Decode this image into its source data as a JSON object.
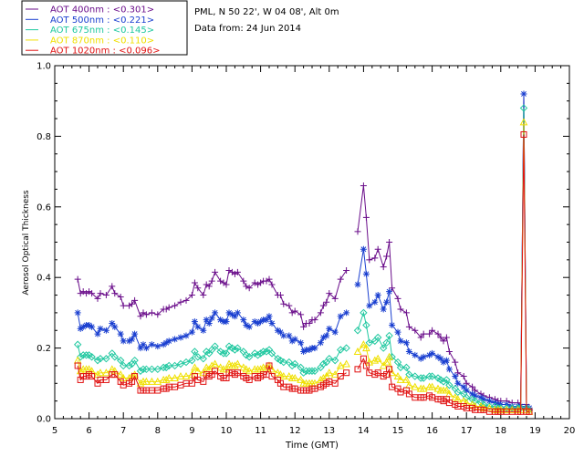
{
  "chart_data": {
    "type": "line",
    "xlabel": "Time (GMT)",
    "ylabel": "Aerosol Optical Thickness",
    "xlim": [
      5,
      20
    ],
    "ylim": [
      0,
      1.0
    ],
    "x_ticks": [
      "5",
      "6",
      "7",
      "8",
      "9",
      "10",
      "11",
      "12",
      "13",
      "14",
      "15",
      "16",
      "17",
      "18",
      "19",
      "20"
    ],
    "y_ticks": [
      "0.0",
      "0.2",
      "0.4",
      "0.6",
      "0.8",
      "1.0"
    ],
    "info_lines": [
      "PML, N 50 22', W 04 08', Alt 0m",
      "Data from: 24 Jun 2014"
    ],
    "legend": [
      {
        "label": "AOT  400nm : <0.301>",
        "color": "#6a0d8a",
        "marker": "plus"
      },
      {
        "label": "AOT  500nm : <0.221>",
        "color": "#1a3fd0",
        "marker": "star"
      },
      {
        "label": "AOT  675nm : <0.145>",
        "color": "#20c8a0",
        "marker": "diamond"
      },
      {
        "label": "AOT  870nm : <0.110>",
        "color": "#f0e000",
        "marker": "triangle"
      },
      {
        "label": "AOT 1020nm : <0.096>",
        "color": "#e01010",
        "marker": "square"
      }
    ],
    "x": [
      5.67,
      5.75,
      5.83,
      5.92,
      6.0,
      6.08,
      6.25,
      6.33,
      6.5,
      6.67,
      6.75,
      6.92,
      7.0,
      7.17,
      7.25,
      7.33,
      7.5,
      7.58,
      7.67,
      7.83,
      8.0,
      8.17,
      8.25,
      8.33,
      8.5,
      8.67,
      8.83,
      9.0,
      9.08,
      9.17,
      9.33,
      9.42,
      9.5,
      9.58,
      9.67,
      9.83,
      9.92,
      10.0,
      10.08,
      10.17,
      10.25,
      10.33,
      10.5,
      10.58,
      10.67,
      10.83,
      10.92,
      11.0,
      11.08,
      11.17,
      11.25,
      11.33,
      11.5,
      11.58,
      11.67,
      11.83,
      11.92,
      12.0,
      12.17,
      12.25,
      12.33,
      12.42,
      12.5,
      12.58,
      12.75,
      12.83,
      12.92,
      13.0,
      13.17,
      13.33,
      13.5,
      13.58,
      13.83,
      14.0,
      14.08,
      14.17,
      14.33,
      14.42,
      14.58,
      14.67,
      14.75,
      14.83,
      15.0,
      15.08,
      15.25,
      15.33,
      15.5,
      15.67,
      15.75,
      15.92,
      16.0,
      16.17,
      16.25,
      16.33,
      16.42,
      16.5,
      16.67,
      16.75,
      16.92,
      17.0,
      17.17,
      17.25,
      17.42,
      17.5,
      17.67,
      17.83,
      17.92,
      18.0,
      18.17,
      18.33,
      18.5,
      18.58,
      18.67,
      18.75,
      18.83
    ],
    "series": [
      {
        "name": "AOT 400nm",
        "values": [
          0.395,
          0.355,
          0.36,
          0.355,
          0.36,
          0.355,
          0.34,
          0.355,
          0.35,
          0.375,
          0.355,
          0.345,
          0.32,
          0.32,
          0.325,
          0.335,
          0.29,
          0.3,
          0.295,
          0.3,
          0.295,
          0.31,
          0.31,
          0.315,
          0.32,
          0.33,
          0.335,
          0.35,
          0.385,
          0.37,
          0.35,
          0.38,
          0.375,
          0.39,
          0.415,
          0.39,
          0.385,
          0.38,
          0.42,
          0.415,
          0.41,
          0.415,
          0.39,
          0.375,
          0.37,
          0.385,
          0.38,
          0.385,
          0.39,
          0.39,
          0.395,
          0.38,
          0.35,
          0.35,
          0.325,
          0.32,
          0.3,
          0.305,
          0.295,
          0.26,
          0.27,
          0.27,
          0.28,
          0.28,
          0.3,
          0.32,
          0.33,
          0.355,
          0.34,
          0.395,
          0.42,
          null,
          0.53,
          0.66,
          0.57,
          0.45,
          0.455,
          0.48,
          0.43,
          0.46,
          0.5,
          0.37,
          0.34,
          0.31,
          0.3,
          0.26,
          0.25,
          0.23,
          0.24,
          0.24,
          0.25,
          0.24,
          0.23,
          0.22,
          0.23,
          0.19,
          0.16,
          0.13,
          0.12,
          0.1,
          0.09,
          0.08,
          0.07,
          0.065,
          0.06,
          0.055,
          0.05,
          0.05,
          0.05,
          0.045,
          0.045,
          0.04,
          0.92,
          0.04,
          0.03
        ]
      },
      {
        "name": "AOT 500nm",
        "values": [
          0.3,
          0.255,
          0.26,
          0.265,
          0.265,
          0.26,
          0.24,
          0.255,
          0.25,
          0.27,
          0.26,
          0.24,
          0.22,
          0.22,
          0.225,
          0.24,
          0.2,
          0.21,
          0.2,
          0.21,
          0.205,
          0.21,
          0.215,
          0.22,
          0.225,
          0.23,
          0.235,
          0.245,
          0.275,
          0.26,
          0.25,
          0.28,
          0.27,
          0.285,
          0.3,
          0.28,
          0.275,
          0.275,
          0.3,
          0.295,
          0.29,
          0.3,
          0.28,
          0.265,
          0.26,
          0.275,
          0.27,
          0.275,
          0.28,
          0.28,
          0.29,
          0.27,
          0.25,
          0.245,
          0.235,
          0.235,
          0.22,
          0.225,
          0.215,
          0.19,
          0.195,
          0.195,
          0.2,
          0.2,
          0.215,
          0.23,
          0.235,
          0.255,
          0.245,
          0.29,
          0.3,
          null,
          0.38,
          0.48,
          0.41,
          0.32,
          0.33,
          0.35,
          0.31,
          0.33,
          0.36,
          0.265,
          0.245,
          0.22,
          0.215,
          0.19,
          0.18,
          0.17,
          0.175,
          0.18,
          0.185,
          0.175,
          0.17,
          0.16,
          0.165,
          0.14,
          0.12,
          0.1,
          0.09,
          0.08,
          0.07,
          0.065,
          0.06,
          0.055,
          0.05,
          0.045,
          0.04,
          0.04,
          0.04,
          0.035,
          0.035,
          0.035,
          0.92,
          0.035,
          0.03
        ]
      },
      {
        "name": "AOT 675nm",
        "values": [
          0.21,
          0.175,
          0.18,
          0.18,
          0.18,
          0.175,
          0.165,
          0.17,
          0.17,
          0.185,
          0.175,
          0.165,
          0.15,
          0.15,
          0.155,
          0.165,
          0.135,
          0.14,
          0.14,
          0.14,
          0.14,
          0.145,
          0.145,
          0.15,
          0.15,
          0.155,
          0.16,
          0.165,
          0.19,
          0.175,
          0.17,
          0.19,
          0.185,
          0.195,
          0.205,
          0.19,
          0.185,
          0.185,
          0.205,
          0.2,
          0.195,
          0.2,
          0.19,
          0.18,
          0.175,
          0.185,
          0.18,
          0.185,
          0.19,
          0.19,
          0.195,
          0.185,
          0.17,
          0.165,
          0.16,
          0.16,
          0.15,
          0.155,
          0.145,
          0.13,
          0.135,
          0.135,
          0.135,
          0.135,
          0.145,
          0.155,
          0.16,
          0.17,
          0.165,
          0.195,
          0.2,
          null,
          0.25,
          0.3,
          0.265,
          0.215,
          0.22,
          0.23,
          0.2,
          0.215,
          0.235,
          0.175,
          0.16,
          0.145,
          0.145,
          0.125,
          0.12,
          0.115,
          0.115,
          0.12,
          0.12,
          0.115,
          0.11,
          0.105,
          0.11,
          0.095,
          0.085,
          0.075,
          0.07,
          0.06,
          0.055,
          0.05,
          0.045,
          0.04,
          0.035,
          0.035,
          0.03,
          0.03,
          0.03,
          0.03,
          0.03,
          0.03,
          0.88,
          0.03,
          0.025
        ]
      },
      {
        "name": "AOT 870nm",
        "values": [
          0.165,
          0.135,
          0.14,
          0.14,
          0.14,
          0.135,
          0.125,
          0.13,
          0.13,
          0.14,
          0.135,
          0.125,
          0.115,
          0.115,
          0.12,
          0.125,
          0.1,
          0.105,
          0.105,
          0.105,
          0.105,
          0.11,
          0.11,
          0.115,
          0.115,
          0.12,
          0.12,
          0.125,
          0.145,
          0.135,
          0.13,
          0.145,
          0.14,
          0.15,
          0.155,
          0.145,
          0.14,
          0.14,
          0.155,
          0.15,
          0.15,
          0.155,
          0.145,
          0.14,
          0.135,
          0.14,
          0.14,
          0.14,
          0.145,
          0.145,
          0.15,
          0.14,
          0.13,
          0.125,
          0.12,
          0.12,
          0.115,
          0.115,
          0.11,
          0.1,
          0.1,
          0.1,
          0.1,
          0.1,
          0.11,
          0.115,
          0.12,
          0.13,
          0.125,
          0.15,
          0.155,
          null,
          0.19,
          0.21,
          0.2,
          0.16,
          0.165,
          0.17,
          0.15,
          0.16,
          0.175,
          0.13,
          0.12,
          0.11,
          0.11,
          0.095,
          0.09,
          0.085,
          0.085,
          0.09,
          0.09,
          0.085,
          0.08,
          0.08,
          0.08,
          0.07,
          0.06,
          0.055,
          0.05,
          0.045,
          0.04,
          0.035,
          0.035,
          0.03,
          0.03,
          0.025,
          0.025,
          0.025,
          0.025,
          0.025,
          0.025,
          0.025,
          0.84,
          0.025,
          0.02
        ]
      },
      {
        "name": "AOT 1020nm",
        "values": [
          0.15,
          0.11,
          0.12,
          0.12,
          0.125,
          0.12,
          0.1,
          0.11,
          0.11,
          0.125,
          0.125,
          0.105,
          0.095,
          0.1,
          0.105,
          0.12,
          0.08,
          0.08,
          0.08,
          0.08,
          0.08,
          0.085,
          0.085,
          0.09,
          0.09,
          0.095,
          0.1,
          0.1,
          0.12,
          0.11,
          0.105,
          0.125,
          0.12,
          0.125,
          0.135,
          0.12,
          0.115,
          0.115,
          0.13,
          0.13,
          0.125,
          0.13,
          0.12,
          0.115,
          0.11,
          0.12,
          0.115,
          0.12,
          0.125,
          0.125,
          0.15,
          0.12,
          0.11,
          0.1,
          0.09,
          0.09,
          0.085,
          0.085,
          0.08,
          0.08,
          0.08,
          0.08,
          0.085,
          0.085,
          0.09,
          0.095,
          0.1,
          0.105,
          0.1,
          0.12,
          0.13,
          null,
          0.14,
          0.17,
          0.15,
          0.13,
          0.125,
          0.13,
          0.12,
          0.125,
          0.14,
          0.09,
          0.085,
          0.075,
          0.08,
          0.07,
          0.06,
          0.06,
          0.06,
          0.065,
          0.06,
          0.055,
          0.055,
          0.05,
          0.055,
          0.045,
          0.04,
          0.035,
          0.035,
          0.03,
          0.03,
          0.025,
          0.025,
          0.025,
          0.02,
          0.02,
          0.02,
          0.02,
          0.02,
          0.02,
          0.02,
          0.02,
          0.805,
          0.02,
          0.02
        ]
      }
    ]
  }
}
